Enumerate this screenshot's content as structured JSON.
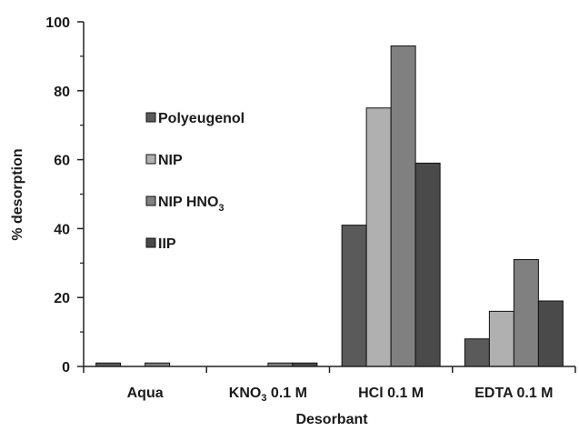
{
  "chart_data": {
    "type": "bar",
    "xlabel": "Desorbant",
    "ylabel": "% desorption",
    "ylim": [
      0,
      100
    ],
    "yticks": [
      "0",
      "20",
      "40",
      "60",
      "80",
      "100"
    ],
    "categories": [
      {
        "main": "Aqua",
        "sub": "",
        "rest": ""
      },
      {
        "main": "KNO",
        "sub": "3",
        "rest": " 0.1 M"
      },
      {
        "main": "HCl 0.1 M",
        "sub": "",
        "rest": ""
      },
      {
        "main": "EDTA 0.1 M",
        "sub": "",
        "rest": ""
      }
    ],
    "series": [
      {
        "name": "Polyeugenol",
        "name_sub": "",
        "color": "#5a5a5a",
        "values": [
          1,
          0,
          41,
          8
        ]
      },
      {
        "name": "NIP",
        "name_sub": "",
        "color": "#b0b0b0",
        "values": [
          0,
          0,
          75,
          16
        ]
      },
      {
        "name": "NIP HNO",
        "name_sub": "3",
        "color": "#808080",
        "values": [
          1,
          1,
          93,
          31
        ]
      },
      {
        "name": "IIP",
        "name_sub": "",
        "color": "#4a4a4a",
        "values": [
          0,
          1,
          59,
          19
        ]
      }
    ],
    "legend_position": "left-inside",
    "grid": false
  }
}
